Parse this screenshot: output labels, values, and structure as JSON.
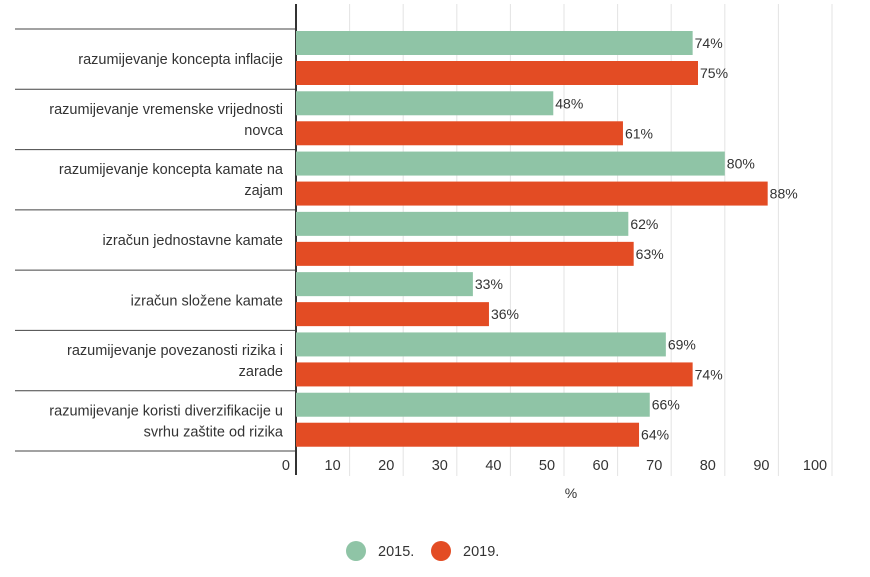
{
  "chart_data": {
    "type": "bar",
    "orientation": "horizontal",
    "title": "",
    "xlabel": "%",
    "ylabel": "",
    "xlim": [
      0,
      100
    ],
    "ticks": [
      "0",
      "10",
      "20",
      "30",
      "40",
      "50",
      "60",
      "70",
      "80",
      "90",
      "100"
    ],
    "grid": true,
    "legend_position": "bottom",
    "categories": [
      [
        "razumijevanje koncepta inflacije"
      ],
      [
        "razumijevanje vremenske vrijednosti",
        "novca"
      ],
      [
        "razumijevanje koncepta kamate na",
        "zajam"
      ],
      [
        "izračun jednostavne kamate"
      ],
      [
        "izračun složene kamate"
      ],
      [
        "razumijevanje povezanosti rizika i",
        "zarade"
      ],
      [
        "razumijevanje koristi diverzifikacije u",
        "svrhu zaštite od rizika"
      ]
    ],
    "series": [
      {
        "name": "2015.",
        "color": "#8fc4a6",
        "values": [
          74,
          48,
          80,
          62,
          33,
          69,
          66
        ],
        "labels": [
          "74%",
          "48%",
          "80%",
          "62%",
          "33%",
          "69%",
          "66%"
        ]
      },
      {
        "name": "2019.",
        "color": "#e34c24",
        "values": [
          75,
          61,
          88,
          63,
          36,
          74,
          64
        ],
        "labels": [
          "75%",
          "61%",
          "88%",
          "63%",
          "36%",
          "74%",
          "64%"
        ]
      }
    ]
  }
}
